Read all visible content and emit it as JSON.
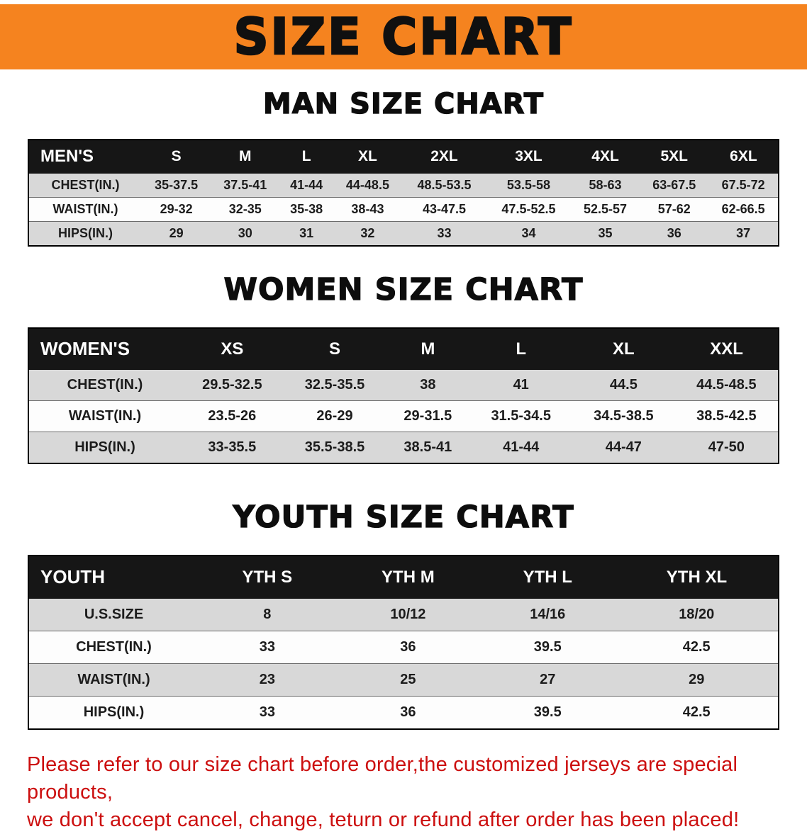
{
  "banner": {
    "title": "SIZE CHART"
  },
  "colors": {
    "banner_bg": "#f5831f",
    "table_header_bg": "#161616",
    "row_alt_gray": "#d8d8d8",
    "disclaimer_red": "#cc0f0f"
  },
  "men": {
    "heading": "MAN SIZE CHART",
    "table": {
      "header": [
        "MEN'S",
        "S",
        "M",
        "L",
        "XL",
        "2XL",
        "3XL",
        "4XL",
        "5XL",
        "6XL"
      ],
      "rows": [
        [
          "CHEST(IN.)",
          "35-37.5",
          "37.5-41",
          "41-44",
          "44-48.5",
          "48.5-53.5",
          "53.5-58",
          "58-63",
          "63-67.5",
          "67.5-72"
        ],
        [
          "WAIST(IN.)",
          "29-32",
          "32-35",
          "35-38",
          "38-43",
          "43-47.5",
          "47.5-52.5",
          "52.5-57",
          "57-62",
          "62-66.5"
        ],
        [
          "HIPS(IN.)",
          "29",
          "30",
          "31",
          "32",
          "33",
          "34",
          "35",
          "36",
          "37"
        ]
      ]
    }
  },
  "women": {
    "heading": "WOMEN SIZE CHART",
    "table": {
      "header": [
        "WOMEN'S",
        "XS",
        "S",
        "M",
        "L",
        "XL",
        "XXL"
      ],
      "rows": [
        [
          "CHEST(IN.)",
          "29.5-32.5",
          "32.5-35.5",
          "38",
          "41",
          "44.5",
          "44.5-48.5"
        ],
        [
          "WAIST(IN.)",
          "23.5-26",
          "26-29",
          "29-31.5",
          "31.5-34.5",
          "34.5-38.5",
          "38.5-42.5"
        ],
        [
          "HIPS(IN.)",
          "33-35.5",
          "35.5-38.5",
          "38.5-41",
          "41-44",
          "44-47",
          "47-50"
        ]
      ]
    }
  },
  "youth": {
    "heading": "YOUTH SIZE CHART",
    "table": {
      "header": [
        "YOUTH",
        "YTH S",
        "YTH M",
        "YTH L",
        "YTH XL"
      ],
      "rows": [
        [
          "U.S.SIZE",
          "8",
          "10/12",
          "14/16",
          "18/20"
        ],
        [
          "CHEST(IN.)",
          "33",
          "36",
          "39.5",
          "42.5"
        ],
        [
          "WAIST(IN.)",
          "23",
          "25",
          "27",
          "29"
        ],
        [
          "HIPS(IN.)",
          "33",
          "36",
          "39.5",
          "42.5"
        ]
      ]
    }
  },
  "disclaimer": {
    "lines": [
      "Please refer to our size chart before order,the customized jerseys are special products,",
      "we don't accept cancel, change, teturn or refund after order has been placed!"
    ]
  }
}
